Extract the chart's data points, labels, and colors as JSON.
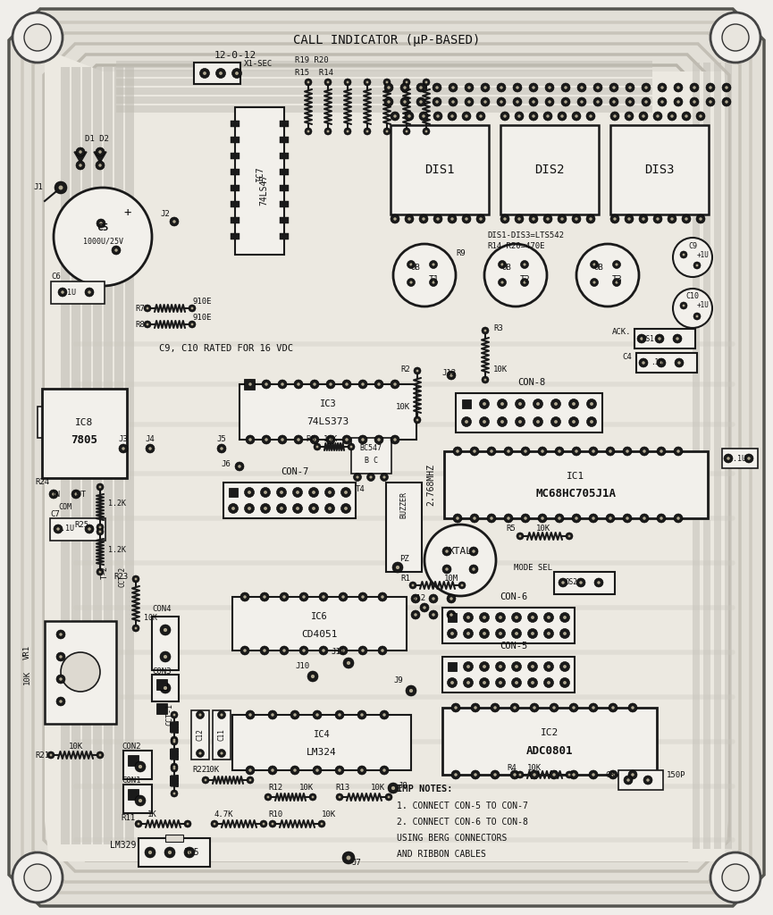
{
  "bg_color": "#f0eeea",
  "board_fill": "#e8e5de",
  "trace_fill": "#c8c4b8",
  "trace_dark": "#a0a098",
  "comp_fill": "#f2f0eb",
  "dark": "#1a1a1a",
  "mid_gray": "#888880",
  "pad_color": "#1a1a1a",
  "text_color": "#111111",
  "title": "CALL INDICATOR (µP-BASED)",
  "note_text": "C9, C10 RATED FOR 16 VDC",
  "imp_notes": [
    "IMP NOTES:",
    "1. CONNECT CON-5 TO CON-7",
    "2. CONNECT CON-6 TO CON-8",
    "USING BERG CONNECTORS",
    "AND RIBBON CABLES"
  ]
}
